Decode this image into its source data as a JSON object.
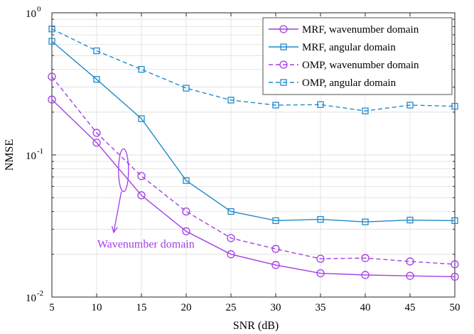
{
  "chart_data": {
    "type": "line",
    "xlabel": "SNR (dB)",
    "ylabel": "NMSE",
    "x": [
      5,
      10,
      15,
      20,
      25,
      30,
      35,
      40,
      45,
      50
    ],
    "xlim": [
      5,
      50
    ],
    "ylim": [
      0.01,
      1
    ],
    "yscale": "log",
    "xticks": [
      5,
      10,
      15,
      20,
      25,
      30,
      35,
      40,
      45,
      50
    ],
    "yticks": [
      {
        "value": 0.01,
        "base": "10",
        "exp": "-2"
      },
      {
        "value": 0.1,
        "base": "10",
        "exp": "-1"
      },
      {
        "value": 1,
        "base": "10",
        "exp": "0"
      }
    ],
    "grid": true,
    "legend_position": "top-right",
    "series": [
      {
        "name": "MRF, wavenumber domain",
        "color": "#a23ee6",
        "dash": "solid",
        "marker": "circle",
        "values": [
          0.245,
          0.122,
          0.052,
          0.029,
          0.02,
          0.0168,
          0.0147,
          0.0143,
          0.0141,
          0.0139
        ]
      },
      {
        "name": "MRF, angular domain",
        "color": "#1f8ac9",
        "dash": "solid",
        "marker": "square",
        "values": [
          0.63,
          0.34,
          0.18,
          0.066,
          0.04,
          0.0345,
          0.0352,
          0.0338,
          0.0348,
          0.0345
        ]
      },
      {
        "name": "OMP, wavenumber domain",
        "color": "#a23ee6",
        "dash": "dashed",
        "marker": "circle",
        "values": [
          0.355,
          0.143,
          0.071,
          0.04,
          0.026,
          0.0218,
          0.0186,
          0.0188,
          0.0178,
          0.017
        ]
      },
      {
        "name": "OMP, angular domain",
        "color": "#1f8ac9",
        "dash": "dashed",
        "marker": "square",
        "values": [
          0.77,
          0.54,
          0.4,
          0.295,
          0.243,
          0.224,
          0.226,
          0.204,
          0.224,
          0.22
        ]
      }
    ],
    "annotation": {
      "text": "Wavenumber domain",
      "color": "#a23ee6",
      "ellipse_center": {
        "x": 13.0,
        "y": 0.078
      },
      "arrow_tip": {
        "x": 11.9,
        "y": 0.0285
      },
      "label_anchor": {
        "x": 15.5,
        "y": 0.0222
      }
    }
  }
}
